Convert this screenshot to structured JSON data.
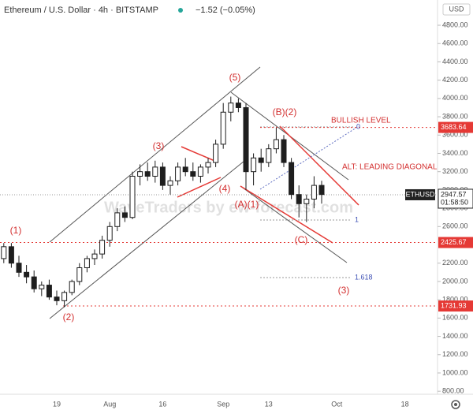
{
  "chart_data": {
    "type": "candlestick",
    "title": "Ethereum / U.S. Dollar · 4h · BITSTAMP",
    "change": "−1.52 (−0.05%)",
    "currency": "USD",
    "categories": [
      null,
      null,
      null,
      null,
      null,
      null,
      null,
      "19",
      null,
      null,
      null,
      null,
      null,
      null,
      "Aug",
      null,
      null,
      null,
      null,
      null,
      null,
      "16",
      null,
      null,
      null,
      null,
      null,
      null,
      null,
      "Sep",
      null,
      null,
      null,
      null,
      null,
      "13",
      null,
      null,
      null,
      null,
      null,
      null,
      null,
      null,
      "Oct",
      null,
      null,
      null,
      null,
      null,
      null,
      null,
      null,
      "18",
      null,
      null,
      null,
      null
    ],
    "open": [
      2250,
      2380,
      2200,
      2100,
      2050,
      1920,
      1960,
      1830,
      1790,
      1880,
      2000,
      2150,
      2250,
      2300,
      2450,
      2600,
      2750,
      2700,
      3150,
      3200,
      3150,
      3250,
      3050,
      3100,
      3250,
      3200,
      3150,
      3250,
      3300,
      3500,
      3850,
      3950,
      3900,
      3200,
      3350,
      3300,
      3450,
      3550,
      3300,
      2950,
      2850,
      2900,
      3050,
      null,
      null,
      null,
      null,
      null,
      null,
      null,
      null,
      null,
      null,
      null,
      null,
      null,
      null,
      null
    ],
    "high": [
      2420,
      2420,
      2280,
      2180,
      2120,
      2000,
      2020,
      1900,
      1900,
      2020,
      2200,
      2280,
      2350,
      2500,
      2650,
      2800,
      2820,
      3200,
      3280,
      3300,
      3320,
      3300,
      3150,
      3300,
      3350,
      3300,
      3280,
      3350,
      3550,
      3950,
      4020,
      4000,
      3950,
      3400,
      3450,
      3500,
      3680,
      3600,
      3350,
      3050,
      2950,
      3150,
      3100,
      null,
      null,
      null,
      null,
      null,
      null,
      null,
      null,
      null,
      null,
      null,
      null,
      null,
      null,
      null
    ],
    "low": [
      2200,
      2150,
      2050,
      1980,
      1880,
      1840,
      1800,
      1740,
      1720,
      1850,
      1960,
      2100,
      2180,
      2250,
      2380,
      2550,
      2650,
      2680,
      3050,
      3100,
      3080,
      3000,
      2950,
      3050,
      3150,
      3100,
      3080,
      3180,
      3250,
      3450,
      3750,
      3850,
      3000,
      3050,
      3200,
      3250,
      3400,
      3250,
      2900,
      2700,
      2650,
      2800,
      2850,
      null,
      null,
      null,
      null,
      null,
      null,
      null,
      null,
      null,
      null,
      null,
      null,
      null,
      null,
      null
    ],
    "close": [
      2380,
      2200,
      2100,
      2050,
      1920,
      1960,
      1830,
      1790,
      1880,
      2000,
      2150,
      2250,
      2300,
      2450,
      2600,
      2750,
      2700,
      3150,
      3200,
      3150,
      3250,
      3050,
      3100,
      3250,
      3200,
      3150,
      3250,
      3300,
      3500,
      3850,
      3950,
      3900,
      3200,
      3350,
      3300,
      3450,
      3550,
      3300,
      2950,
      2850,
      2900,
      3050,
      2950,
      null,
      null,
      null,
      null,
      null,
      null,
      null,
      null,
      null,
      null,
      null,
      null,
      null,
      null,
      null
    ],
    "up_color": "#ffffff",
    "down_color": "#1e1e1e",
    "ylim": [
      767,
      5076
    ],
    "yticks": [
      {
        "value": 800,
        "label": "800.00"
      },
      {
        "value": 1000,
        "label": "1000.00"
      },
      {
        "value": 1200,
        "label": "1200.00"
      },
      {
        "value": 1400,
        "label": "1400.00"
      },
      {
        "value": 1600,
        "label": "1600.00"
      },
      {
        "value": 1800,
        "label": "1800.00"
      },
      {
        "value": 2000,
        "label": "2000.00"
      },
      {
        "value": 2200,
        "label": "2200.00"
      },
      {
        "value": 2600,
        "label": "2600.00"
      },
      {
        "value": 2800,
        "label": "2800.00"
      },
      {
        "value": 3000,
        "label": "3000.00"
      },
      {
        "value": 3200,
        "label": "3200.00"
      },
      {
        "value": 3400,
        "label": "3400.00"
      },
      {
        "value": 3600,
        "label": "3600.00"
      },
      {
        "value": 3800,
        "label": "3800.00"
      },
      {
        "value": 4000,
        "label": "4000.00"
      },
      {
        "value": 4200,
        "label": "4200.00"
      },
      {
        "value": 4400,
        "label": "4400.00"
      },
      {
        "value": 4600,
        "label": "4600.00"
      },
      {
        "value": 4800,
        "label": "4800.00"
      }
    ],
    "price_levels": [
      3683.64,
      2425.67,
      1731.93
    ],
    "last_price": 2947.57,
    "symbol": "ETHUSD",
    "countdown": "01:58:50",
    "annotations": [
      "(1)",
      "(2)",
      "(3)",
      "(4)",
      "(5)",
      "(A)(1)",
      "(B)(2)",
      "(C)",
      "(3)",
      "BULLISH LEVEL",
      "ALT: LEADING DIAGONAL",
      "0",
      "1",
      "1.618"
    ],
    "watermark": "WaveTraders by ew-forecast.com"
  }
}
